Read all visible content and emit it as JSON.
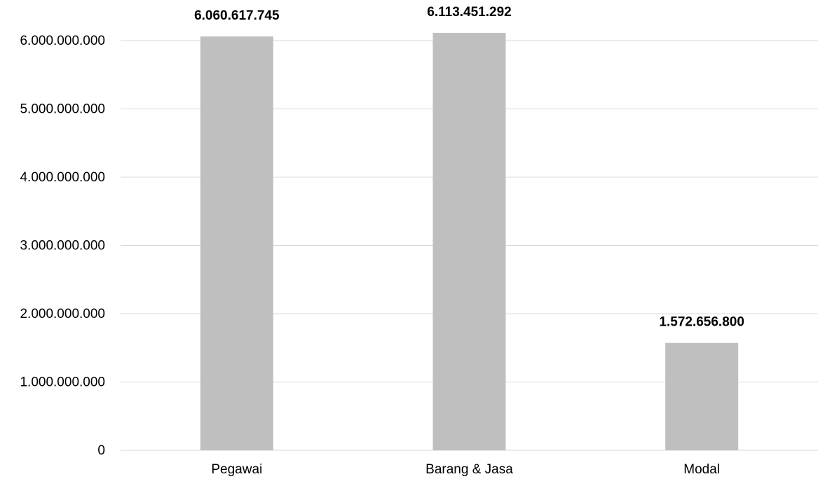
{
  "chart_data": {
    "type": "bar",
    "title": "",
    "xlabel": "",
    "ylabel": "",
    "categories": [
      "Pegawai",
      "Barang & Jasa",
      "Modal"
    ],
    "values": [
      6060617745,
      6113451292,
      1572656800
    ],
    "data_labels": [
      "6.060.617.745",
      "6.113.451.292",
      "1.572.656.800"
    ],
    "ylim": [
      0,
      6000000000
    ],
    "yticks": [
      0,
      1000000000,
      2000000000,
      3000000000,
      4000000000,
      5000000000,
      6000000000
    ],
    "ytick_labels": [
      "0",
      "1.000.000.000",
      "2.000.000.000",
      "3.000.000.000",
      "4.000.000.000",
      "5.000.000.000",
      "6.000.000.000"
    ],
    "grid": true,
    "legend": "none",
    "bar_color": "#bfbfbf",
    "grid_color": "#d9d9d9"
  }
}
